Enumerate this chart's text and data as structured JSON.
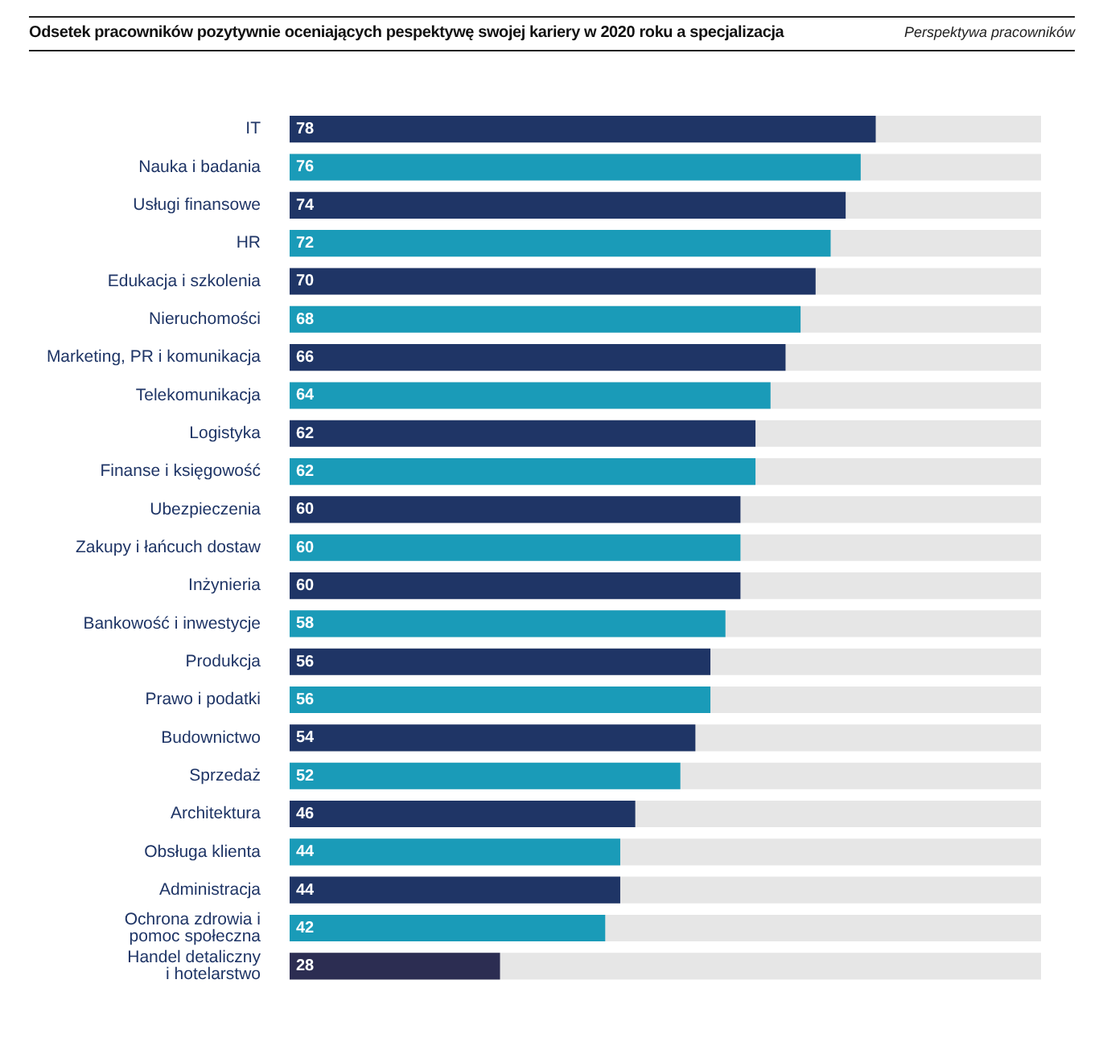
{
  "chart_data": {
    "type": "bar",
    "orientation": "horizontal",
    "title": "Odsetek pracowników pozytywnie oceniających pespektywę swojej kariery w 2020 roku a specjalizacja",
    "annotations": [
      "Perspektywa pracowników"
    ],
    "categories": [
      "IT",
      "Nauka i badania",
      "Usługi finansowe",
      "HR",
      "Edukacja i szkolenia",
      "Nieruchomości",
      "Marketing, PR i komunikacja",
      "Telekomunikacja",
      "Logistyka",
      "Finanse i księgowość",
      "Ubezpieczenia",
      "Zakupy i łańcuch dostaw",
      "Inżynieria",
      "Bankowość i inwestycje",
      "Produkcja",
      "Prawo i podatki",
      "Budownictwo",
      "Sprzedaż",
      "Architektura",
      "Obsługa klienta",
      "Administracja",
      "Ochrona zdrowia i pomoc społeczna",
      "Handel detaliczny i hotelarstwo"
    ],
    "values": [
      78,
      76,
      74,
      72,
      70,
      68,
      66,
      64,
      62,
      62,
      60,
      60,
      60,
      58,
      56,
      56,
      54,
      52,
      46,
      44,
      44,
      42,
      28
    ],
    "colors": [
      "#1f3566",
      "#1a9bb8",
      "#1f3566",
      "#1a9bb8",
      "#1f3566",
      "#1a9bb8",
      "#1f3566",
      "#1a9bb8",
      "#1f3566",
      "#1a9bb8",
      "#1f3566",
      "#1a9bb8",
      "#1f3566",
      "#1a9bb8",
      "#1f3566",
      "#1a9bb8",
      "#1f3566",
      "#1a9bb8",
      "#1f3566",
      "#1a9bb8",
      "#1f3566",
      "#1a9bb8",
      "#2c2d52"
    ],
    "xlim": [
      0,
      100
    ],
    "data_labels": true,
    "legend": false,
    "tick_labels": "y"
  }
}
